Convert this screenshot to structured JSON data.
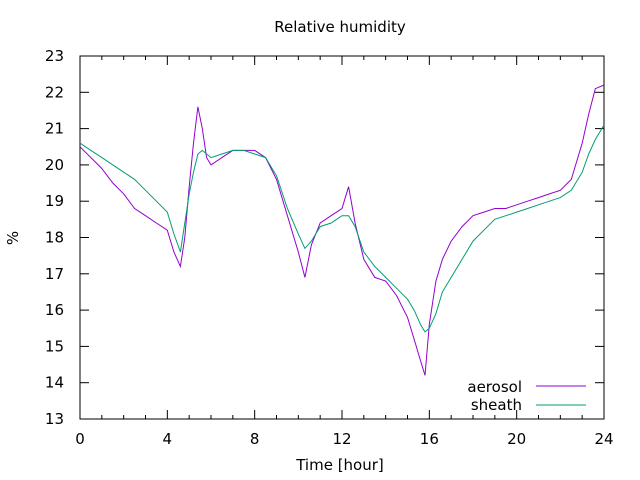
{
  "chart_data": {
    "type": "line",
    "title": "Relative humidity",
    "xlabel": "Time [hour]",
    "ylabel": "%",
    "xlim": [
      0,
      24
    ],
    "ylim": [
      13,
      23
    ],
    "xticks": [
      0,
      4,
      8,
      12,
      16,
      20,
      24
    ],
    "yticks": [
      13,
      14,
      15,
      16,
      17,
      18,
      19,
      20,
      21,
      22,
      23
    ],
    "grid": false,
    "legend_position": "bottom-right",
    "series": [
      {
        "name": "aerosol",
        "color": "#9400d3",
        "x": [
          0,
          0.5,
          1,
          1.5,
          2,
          2.5,
          3,
          3.5,
          4,
          4.3,
          4.6,
          4.8,
          5,
          5.2,
          5.4,
          5.6,
          5.8,
          6,
          6.5,
          7,
          7.5,
          8,
          8.5,
          9,
          9.5,
          10,
          10.3,
          10.6,
          11,
          11.5,
          12,
          12.3,
          12.6,
          13,
          13.5,
          14,
          14.5,
          15,
          15.3,
          15.6,
          15.8,
          16,
          16.3,
          16.6,
          17,
          17.5,
          18,
          18.5,
          19,
          19.5,
          20,
          20.5,
          21,
          21.5,
          22,
          22.5,
          23,
          23.3,
          23.6,
          24
        ],
        "y": [
          20.5,
          20.2,
          19.9,
          19.5,
          19.2,
          18.8,
          18.6,
          18.4,
          18.2,
          17.6,
          17.2,
          18.0,
          19.4,
          20.6,
          21.6,
          21.0,
          20.2,
          20.0,
          20.2,
          20.4,
          20.4,
          20.4,
          20.2,
          19.6,
          18.6,
          17.6,
          16.9,
          17.8,
          18.4,
          18.6,
          18.8,
          19.4,
          18.4,
          17.4,
          16.9,
          16.8,
          16.4,
          15.8,
          15.2,
          14.6,
          14.2,
          15.6,
          16.8,
          17.4,
          17.9,
          18.3,
          18.6,
          18.7,
          18.8,
          18.8,
          18.9,
          19.0,
          19.1,
          19.2,
          19.3,
          19.6,
          20.6,
          21.4,
          22.1,
          22.2
        ]
      },
      {
        "name": "sheath",
        "color": "#009e73",
        "x": [
          0,
          0.5,
          1,
          1.5,
          2,
          2.5,
          3,
          3.5,
          4,
          4.3,
          4.6,
          4.8,
          5,
          5.2,
          5.4,
          5.6,
          5.8,
          6,
          6.5,
          7,
          7.5,
          8,
          8.5,
          9,
          9.5,
          10,
          10.3,
          10.6,
          11,
          11.5,
          12,
          12.3,
          12.6,
          13,
          13.5,
          14,
          14.5,
          15,
          15.3,
          15.6,
          15.8,
          16,
          16.3,
          16.6,
          17,
          17.5,
          18,
          18.5,
          19,
          19.5,
          20,
          20.5,
          21,
          21.5,
          22,
          22.5,
          23,
          23.3,
          23.6,
          24
        ],
        "y": [
          20.6,
          20.4,
          20.2,
          20.0,
          19.8,
          19.6,
          19.3,
          19.0,
          18.7,
          18.1,
          17.6,
          18.4,
          19.2,
          19.8,
          20.3,
          20.4,
          20.3,
          20.2,
          20.3,
          20.4,
          20.4,
          20.3,
          20.2,
          19.7,
          18.8,
          18.1,
          17.7,
          17.9,
          18.3,
          18.4,
          18.6,
          18.6,
          18.3,
          17.6,
          17.2,
          16.9,
          16.6,
          16.3,
          16.0,
          15.6,
          15.4,
          15.5,
          15.9,
          16.5,
          16.9,
          17.4,
          17.9,
          18.2,
          18.5,
          18.6,
          18.7,
          18.8,
          18.9,
          19.0,
          19.1,
          19.3,
          19.8,
          20.3,
          20.7,
          21.1
        ]
      }
    ]
  }
}
